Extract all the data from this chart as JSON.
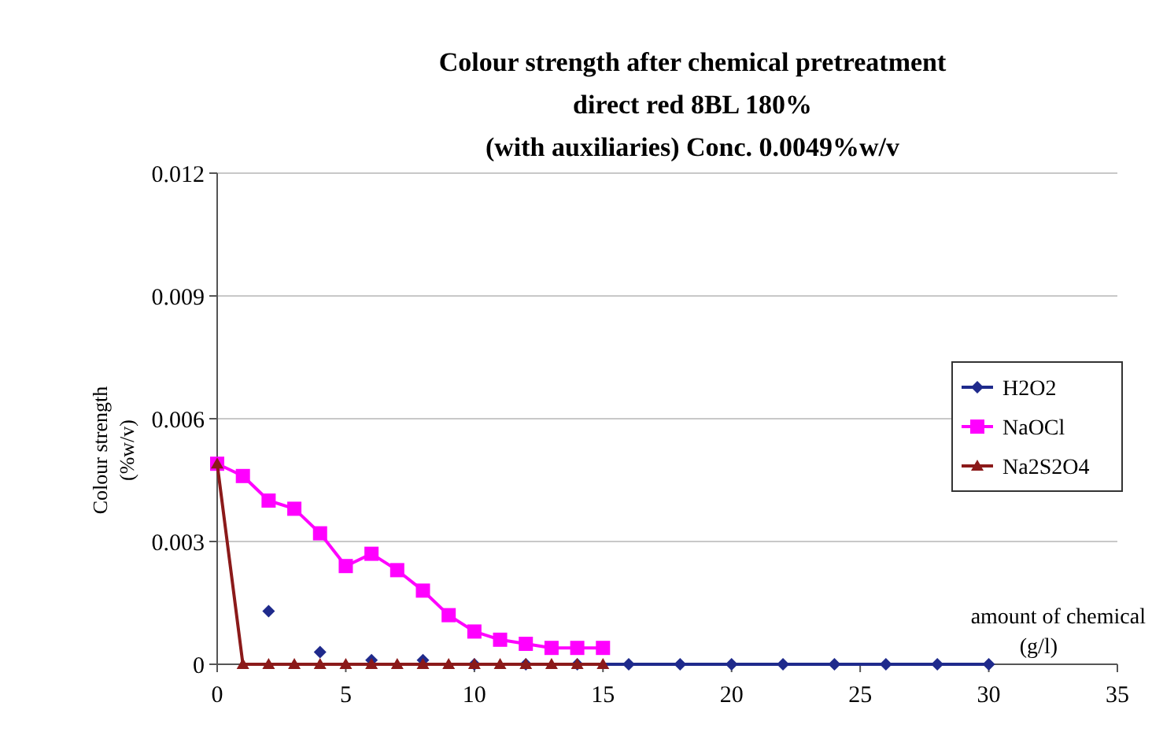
{
  "chart_data": {
    "type": "line",
    "title": "Colour strength after chemical pretreatment\ndirect red 8BL 180%\n(with auxiliaries) Conc. 0.0049%w/v",
    "xlabel": "amount of chemical\n(g/l)",
    "ylabel": "Colour strength\n(%w/v)",
    "xlim": [
      0,
      35
    ],
    "xticks": [
      0,
      5,
      10,
      15,
      20,
      25,
      30,
      35
    ],
    "ylim": [
      0,
      0.012
    ],
    "yticks": [
      0,
      0.003,
      0.006,
      0.009,
      0.012
    ],
    "grid": "y",
    "legend": "right",
    "series": [
      {
        "name": "H2O2",
        "color": "#1f2a8c",
        "marker": "diamond",
        "x": [
          2,
          3,
          4,
          5,
          6,
          7,
          8,
          9,
          10,
          12,
          14,
          16,
          18,
          20,
          22,
          24,
          26,
          28,
          30
        ],
        "values": [
          0.0013,
          null,
          0.0003,
          null,
          0.0001,
          null,
          0.0001,
          null,
          0,
          0,
          0,
          0,
          0,
          0,
          0,
          0,
          0,
          0,
          0
        ]
      },
      {
        "name": "NaOCl",
        "color": "#ff00ff",
        "marker": "square",
        "x": [
          0,
          1,
          2,
          3,
          4,
          5,
          6,
          7,
          8,
          9,
          10,
          11,
          12,
          13,
          14,
          15
        ],
        "values": [
          0.0049,
          0.0046,
          0.004,
          0.0038,
          0.0032,
          0.0024,
          0.0027,
          0.0023,
          0.0018,
          0.0012,
          0.0008,
          0.0006,
          0.0005,
          0.0004,
          0.0004,
          0.0004
        ]
      },
      {
        "name": "Na2S2O4",
        "color": "#8b1a1a",
        "marker": "triangle",
        "x": [
          0,
          1,
          2,
          3,
          4,
          5,
          6,
          7,
          8,
          9,
          10,
          11,
          12,
          13,
          14,
          15
        ],
        "values": [
          0.0049,
          0,
          0,
          0,
          0,
          0,
          0,
          0,
          0,
          0,
          0,
          0,
          0,
          0,
          0,
          0
        ]
      }
    ]
  }
}
